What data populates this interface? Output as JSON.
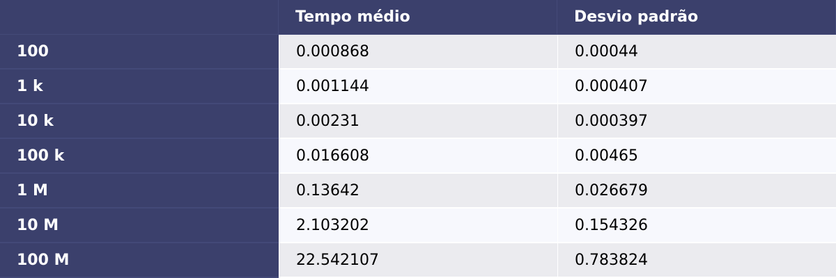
{
  "chart_data": {
    "type": "table",
    "columns": [
      "",
      "Tempo médio",
      "Desvio padrão"
    ],
    "rows": [
      {
        "label": "100",
        "values": [
          "0.000868",
          "0.00044"
        ]
      },
      {
        "label": "1 k",
        "values": [
          "0.001144",
          "0.000407"
        ]
      },
      {
        "label": "10 k",
        "values": [
          "0.00231",
          "0.000397"
        ]
      },
      {
        "label": "100 k",
        "values": [
          "0.016608",
          "0.00465"
        ]
      },
      {
        "label": "1 M",
        "values": [
          "0.13642",
          "0.026679"
        ]
      },
      {
        "label": "10 M",
        "values": [
          "2.103202",
          "0.154326"
        ]
      },
      {
        "label": "100 M",
        "values": [
          "22.542107",
          "0.783824"
        ]
      }
    ]
  },
  "colors": {
    "header_bg": "#3b406c",
    "header_text": "#ffffff",
    "row_odd_bg": "#ebebef",
    "row_even_bg": "#f7f8fd",
    "value_text": "#000000"
  }
}
